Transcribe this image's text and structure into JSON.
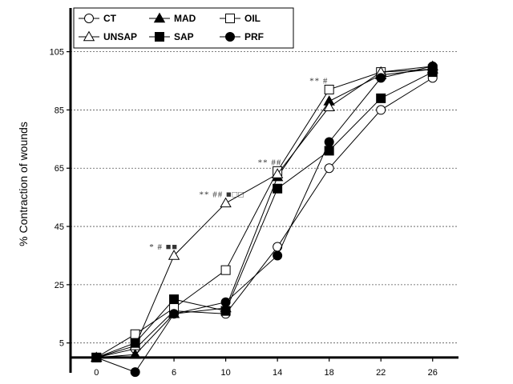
{
  "chart_data": {
    "type": "line",
    "title": "",
    "xlabel": "",
    "ylabel": "% Contraction of wounds",
    "x": [
      0,
      3,
      6,
      10,
      14,
      18,
      22,
      26
    ],
    "x_ticks": [
      "0",
      "6",
      "10",
      "14",
      "18",
      "22",
      "26"
    ],
    "x_tick_values": [
      0,
      6,
      10,
      14,
      18,
      22,
      26
    ],
    "y_ticks": [
      "5",
      "25",
      "45",
      "65",
      "85",
      "105"
    ],
    "y_tick_values": [
      5,
      25,
      45,
      65,
      85,
      105
    ],
    "xlim": [
      -2,
      28
    ],
    "ylim": [
      -2.5,
      120
    ],
    "x_axis_at": 0,
    "grid": "horizontal-dashed",
    "legend_position": "top-left",
    "series": [
      {
        "name": "CT",
        "marker": "circle-open",
        "values": [
          0,
          3,
          16,
          15,
          38,
          65,
          85,
          96
        ]
      },
      {
        "name": "MAD",
        "marker": "triangle-filled",
        "values": [
          0,
          1,
          15,
          17,
          62,
          88,
          97,
          99
        ]
      },
      {
        "name": "OIL",
        "marker": "square-open",
        "values": [
          0,
          8,
          17,
          30,
          64,
          92,
          98,
          99
        ]
      },
      {
        "name": "UNSAP",
        "marker": "triangle-open",
        "values": [
          0,
          4,
          35,
          53,
          63,
          86,
          98,
          100
        ]
      },
      {
        "name": "SAP",
        "marker": "square-filled",
        "values": [
          0,
          5,
          20,
          16,
          58,
          71,
          89,
          98
        ]
      },
      {
        "name": "PRF",
        "marker": "circle-filled",
        "values": [
          0,
          -5,
          15,
          19,
          35,
          74,
          96,
          100
        ]
      }
    ],
    "annotations": [
      {
        "text": "* # ■■",
        "x": 5.2,
        "y": 37
      },
      {
        "text": "** ## ■□□",
        "x": 9.7,
        "y": 55
      },
      {
        "text": "** ##",
        "x": 13.4,
        "y": 66
      },
      {
        "text": "** #",
        "x": 17.2,
        "y": 94
      }
    ]
  }
}
